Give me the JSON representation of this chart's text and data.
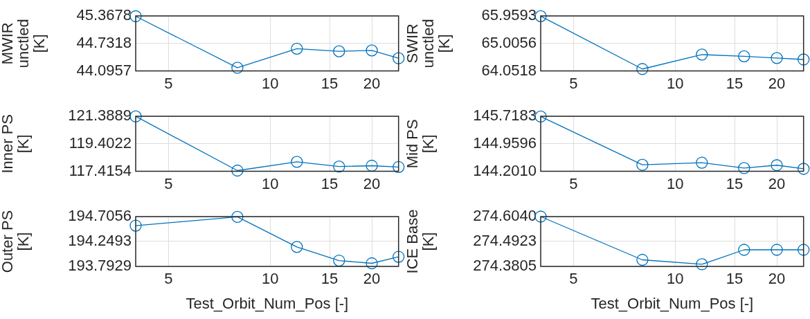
{
  "chart_data": [
    {
      "type": "line",
      "ylabel": "MWIR unctled [K]",
      "x": [
        4,
        8,
        12,
        16,
        20,
        24
      ],
      "series": [
        {
          "color": "#0072bd",
          "values": [
            45.36,
            44.17,
            44.61,
            44.55,
            44.57,
            44.39
          ]
        }
      ],
      "xlim": [
        4,
        24
      ],
      "xticks": [
        5,
        10,
        15,
        20
      ],
      "ylim": [
        44.0957,
        45.3678
      ],
      "yticks": [
        44.0957,
        44.7318,
        45.3678
      ],
      "log": "x",
      "grid": true,
      "marker": "circle",
      "legend": false
    },
    {
      "type": "line",
      "ylabel": "SWIR unctled [K]",
      "x": [
        4,
        8,
        12,
        16,
        20,
        24
      ],
      "series": [
        {
          "color": "#0072bd",
          "values": [
            65.95,
            64.12,
            64.62,
            64.56,
            64.5,
            64.45
          ]
        }
      ],
      "xlim": [
        4,
        24
      ],
      "xticks": [
        5,
        10,
        15,
        20
      ],
      "ylim": [
        64.0518,
        65.9593
      ],
      "yticks": [
        64.0518,
        65.0056,
        65.9593
      ],
      "log": "x",
      "grid": true,
      "marker": "circle",
      "legend": false
    },
    {
      "type": "line",
      "ylabel": "Inner PS [K]",
      "x": [
        4,
        8,
        12,
        16,
        20,
        24
      ],
      "series": [
        {
          "color": "#0072bd",
          "values": [
            121.38,
            117.47,
            118.1,
            117.76,
            117.82,
            117.73
          ]
        }
      ],
      "xlim": [
        4,
        24
      ],
      "xticks": [
        5,
        10,
        15,
        20
      ],
      "ylim": [
        117.4154,
        121.3889
      ],
      "yticks": [
        117.4154,
        119.4022,
        121.3889
      ],
      "log": "x",
      "grid": true,
      "marker": "circle",
      "legend": false
    },
    {
      "type": "line",
      "ylabel": "Mid PS [K]",
      "x": [
        4,
        8,
        12,
        16,
        20,
        24
      ],
      "series": [
        {
          "color": "#0072bd",
          "values": [
            145.71,
            144.38,
            144.44,
            144.29,
            144.37,
            144.27
          ]
        }
      ],
      "xlim": [
        4,
        24
      ],
      "xticks": [
        5,
        10,
        15,
        20
      ],
      "ylim": [
        144.201,
        145.7183
      ],
      "yticks": [
        {
          "value": 144.201,
          "label": "144.2010"
        },
        144.9596,
        145.7183
      ],
      "log": "x",
      "grid": true,
      "marker": "circle",
      "legend": false
    },
    {
      "type": "line",
      "xlabel": "Test_Orbit_Num_Pos [-]",
      "ylabel": "Outer PS [K]",
      "x": [
        4,
        8,
        12,
        16,
        20,
        24
      ],
      "series": [
        {
          "color": "#0072bd",
          "values": [
            194.54,
            194.7,
            194.15,
            193.9,
            193.85,
            193.97
          ]
        }
      ],
      "xlim": [
        4,
        24
      ],
      "xticks": [
        5,
        10,
        15,
        20
      ],
      "ylim": [
        193.7929,
        194.7056
      ],
      "yticks": [
        193.7929,
        194.2493,
        194.7056
      ],
      "log": "x",
      "grid": true,
      "marker": "circle",
      "legend": false
    },
    {
      "type": "line",
      "xlabel": "Test_Orbit_Num_Pos [-]",
      "ylabel": "ICE Base [K]",
      "x": [
        4,
        8,
        12,
        16,
        20,
        24
      ],
      "series": [
        {
          "color": "#0072bd",
          "values": [
            274.604,
            274.41,
            274.39,
            274.455,
            274.455,
            274.455
          ]
        }
      ],
      "xlim": [
        4,
        24
      ],
      "xticks": [
        5,
        10,
        15,
        20
      ],
      "ylim": [
        274.3805,
        274.604
      ],
      "yticks": [
        274.3805,
        274.4923,
        {
          "value": 274.604,
          "label": "274.6040"
        }
      ],
      "log": "x",
      "grid": true,
      "marker": "circle",
      "legend": false
    }
  ]
}
